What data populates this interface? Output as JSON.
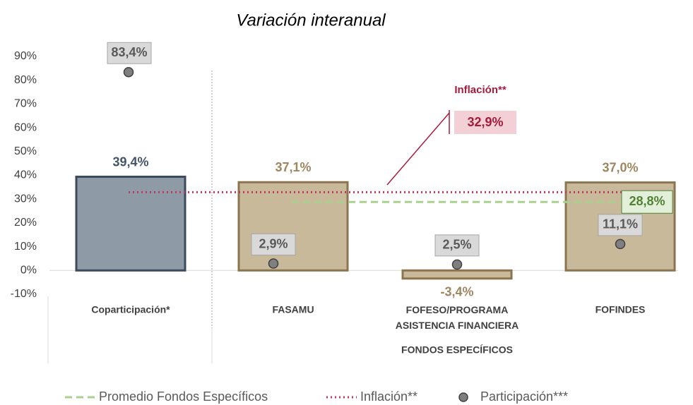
{
  "chart_data": {
    "type": "bar",
    "title": "Variación interanual",
    "categories": [
      "Coparticipación*",
      "FASAMU",
      "FOFESO/PROGRAMA ASISTENCIA FINANCIERA",
      "FOFINDES"
    ],
    "group_label": "FONDOS ESPECÍFICOS",
    "values": [
      39.4,
      37.1,
      -3.4,
      37.0
    ],
    "value_labels": [
      "39,4%",
      "37,1%",
      "-3,4%",
      "37,0%"
    ],
    "colors": [
      "#8e9aa6",
      "#c9b99b",
      "#c9b99b",
      "#c9b99b"
    ],
    "border_colors": [
      "#3b4a5c",
      "#8b7550",
      "#8b7550",
      "#8b7550"
    ],
    "label_colors": [
      "#44546a",
      "#a08660",
      "#a08660",
      "#a08660"
    ],
    "ylim": [
      -10,
      90
    ],
    "yticks": [
      {
        "value": -10,
        "label": "-10%"
      },
      {
        "value": 0,
        "label": "0%"
      },
      {
        "value": 10,
        "label": "10%"
      },
      {
        "value": 20,
        "label": "20%"
      },
      {
        "value": 30,
        "label": "30%"
      },
      {
        "value": 40,
        "label": "40%"
      },
      {
        "value": 50,
        "label": "50%"
      },
      {
        "value": 60,
        "label": "60%"
      },
      {
        "value": 70,
        "label": "70%"
      },
      {
        "value": 80,
        "label": "80%"
      },
      {
        "value": 90,
        "label": "90%"
      }
    ],
    "series": [
      {
        "name": "Participación***",
        "color": "#7f7f7f",
        "values": [
          83.4,
          2.9,
          2.5,
          11.1
        ],
        "value_labels": [
          "83,4%",
          "2,9%",
          "2,5%",
          "11,1%"
        ]
      }
    ],
    "reference_lines": [
      {
        "name": "Promedio Fondos Específicos",
        "color": "#a9d18e",
        "value": 28.8,
        "value_label": "28,8%"
      },
      {
        "name": "Inflación**",
        "color": "#c0395a",
        "value": 32.9,
        "value_label": "32,9%"
      }
    ],
    "annotation": "Inflación**"
  }
}
